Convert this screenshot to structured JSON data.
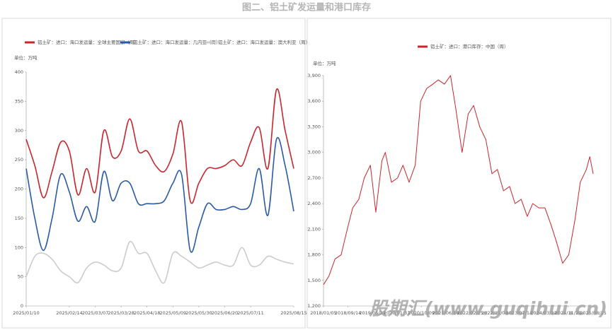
{
  "title": "图二、铝土矿发运量和港口库存",
  "watermark": "股期汇(www.guqihui.cn)",
  "chart_data": [
    {
      "type": "line",
      "unit": "单位：万吨",
      "categories": [
        "2025/01/10",
        null,
        null,
        null,
        null,
        "2025/02/14",
        null,
        null,
        "2025/03/07",
        null,
        null,
        "2025/03/28",
        null,
        null,
        "2025/04/18",
        null,
        null,
        "2025/05/09",
        null,
        null,
        "2025/05/30",
        null,
        null,
        "2025/06/20",
        null,
        null,
        "2025/07/11",
        null,
        null,
        null,
        null,
        "2025/08/15"
      ],
      "series": [
        {
          "name": "铝土矿：进口：海口发运量：全球主要国家（周）",
          "color": "#c8262e",
          "values": [
            285,
            240,
            185,
            230,
            280,
            265,
            190,
            235,
            195,
            300,
            255,
            265,
            320,
            265,
            265,
            240,
            230,
            260,
            315,
            180,
            210,
            235,
            235,
            240,
            250,
            240,
            280,
            305,
            235,
            370,
            300,
            235
          ]
        },
        {
          "name": "铝土矿：进口：海口发运量：几内亚（周）",
          "color": "#2a5aa6",
          "values": [
            235,
            150,
            95,
            150,
            225,
            195,
            145,
            170,
            145,
            230,
            180,
            210,
            210,
            175,
            175,
            175,
            180,
            210,
            225,
            95,
            135,
            175,
            165,
            165,
            170,
            165,
            175,
            235,
            155,
            285,
            240,
            162
          ]
        },
        {
          "name": "铝土矿：进口：海口发运量：澳大利亚（周）",
          "color": "#cccccc",
          "values": [
            50,
            85,
            90,
            80,
            60,
            50,
            40,
            65,
            75,
            70,
            60,
            65,
            110,
            90,
            90,
            60,
            40,
            90,
            85,
            75,
            65,
            70,
            75,
            70,
            70,
            100,
            70,
            70,
            85,
            80,
            75,
            72
          ]
        }
      ],
      "ylim": [
        0,
        400
      ],
      "yticks": [
        0,
        50,
        100,
        150,
        200,
        250,
        300,
        350,
        400
      ]
    },
    {
      "type": "line",
      "unit": "单位：万吨",
      "x": [
        "2018/01/05",
        "2018/03/02",
        "2018/05/04",
        "2018/07/06",
        "2018/09/07",
        "2018/11/02",
        "2019/01/04",
        "2019/03/01",
        "2019/05/03",
        "2019/06/28",
        "2019/08/30",
        "2019/10/04",
        "2019/12/06",
        "2020/02/07",
        "2020/04/03",
        "2020/06/05",
        "2020/08/07",
        "2020/10/02",
        "2020/12/04",
        "2021/02/05",
        "2021/04/02",
        "2021/06/04",
        "2021/08/06",
        "2021/10/01",
        "2021/12/03",
        "2022/02/04",
        "2022/04/01",
        "2022/06/03",
        "2022/08/05",
        "2022/10/07",
        "2022/12/02",
        "2023/02/03",
        "2023/04/07",
        "2023/06/02",
        "2023/08/04",
        "2023/10/06",
        "2023/12/01",
        "2024/02/02",
        "2024/04/05",
        "2024/06/07",
        "2024/08/02",
        "2024/10/04",
        "2024/12/06",
        "2025/02/07",
        "2025/04/04",
        "2025/06/06",
        "2025/07/11",
        "2025/08/15"
      ],
      "series": [
        {
          "name": "铝土矿：进口：港口库存：中国（周）",
          "color": "#c8262e",
          "values": [
            1450,
            1550,
            1750,
            1800,
            2100,
            2350,
            2450,
            2700,
            2850,
            2300,
            2900,
            3000,
            2650,
            2700,
            2850,
            2650,
            2850,
            3600,
            3750,
            3800,
            3850,
            3800,
            3900,
            3500,
            3000,
            3450,
            3550,
            3300,
            3150,
            2750,
            2800,
            2550,
            2600,
            2400,
            2450,
            2250,
            2400,
            2350,
            2350,
            2150,
            1950,
            1700,
            1800,
            2200,
            2650,
            2800,
            2950,
            2750
          ]
        }
      ],
      "xticks": [
        "2018/01/05",
        "2018/09/14",
        "2019/05/24",
        "2020/01/31",
        "2020/10/09",
        "2021/06/18",
        "2022/02/25",
        "2022/11/04",
        "2023/07/14",
        "2024/03/22",
        "2024/11/29",
        "2025/08/15"
      ],
      "ylim": [
        1200,
        3900
      ],
      "yticks": [
        {
          "value": 1200,
          "label": "1,200"
        },
        {
          "value": 1500,
          "label": "1,500"
        },
        {
          "value": 1800,
          "label": "1,800"
        },
        {
          "value": 2100,
          "label": "2,100"
        },
        {
          "value": 2400,
          "label": "2,400"
        },
        {
          "value": 2700,
          "label": "2,700"
        },
        {
          "value": 3000,
          "label": "3,000"
        },
        {
          "value": 3300,
          "label": "3,300"
        },
        {
          "value": 3600,
          "label": "3,600"
        },
        {
          "value": 3900,
          "label": "3,900"
        }
      ]
    }
  ]
}
